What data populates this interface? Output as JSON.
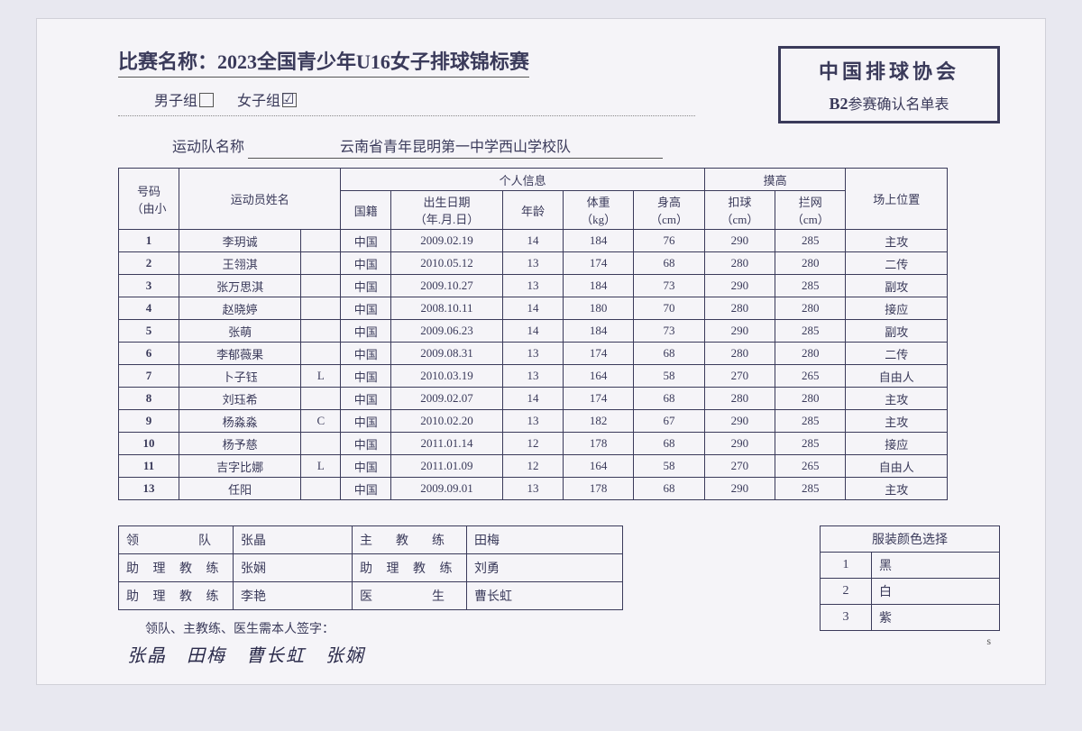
{
  "title_label": "比赛名称：",
  "title_value": "2023全国青少年U16女子排球锦标赛",
  "group_male": "男子组",
  "group_female": "女子组",
  "org_title": "中国排球协会",
  "org_code": "B2",
  "org_sub": "参赛确认名单表",
  "team_label": "运动队名称",
  "team_name": "云南省青年昆明第一中学西山学校队",
  "headers": {
    "num": "号码（由小到大）",
    "num_l1": "号码",
    "num_l2": "（由小",
    "num_l3": "到大）",
    "name": "运动员姓名",
    "personal": "个人信息",
    "nation": "国籍",
    "dob": "出生日期（年.月.日）",
    "dob_l1": "出生日期",
    "dob_l2": "（年.月.日）",
    "age": "年龄",
    "weight": "体重",
    "weight_u": "（kg）",
    "height": "身高",
    "height_u": "（cm）",
    "reach": "摸高",
    "spike": "扣球",
    "spike_u": "（cm）",
    "block": "拦网",
    "block_u": "（cm）",
    "pos": "场上位置"
  },
  "rows": [
    {
      "num": "1",
      "name": "李玥诚",
      "role": "",
      "nat": "中国",
      "dob": "2009.02.19",
      "age": "14",
      "w": "184",
      "h": "76",
      "sp": "290",
      "bl": "285",
      "pos": "主攻"
    },
    {
      "num": "2",
      "name": "王翎淇",
      "role": "",
      "nat": "中国",
      "dob": "2010.05.12",
      "age": "13",
      "w": "174",
      "h": "68",
      "sp": "280",
      "bl": "280",
      "pos": "二传"
    },
    {
      "num": "3",
      "name": "张万思淇",
      "role": "",
      "nat": "中国",
      "dob": "2009.10.27",
      "age": "13",
      "w": "184",
      "h": "73",
      "sp": "290",
      "bl": "285",
      "pos": "副攻"
    },
    {
      "num": "4",
      "name": "赵晓婷",
      "role": "",
      "nat": "中国",
      "dob": "2008.10.11",
      "age": "14",
      "w": "180",
      "h": "70",
      "sp": "280",
      "bl": "280",
      "pos": "接应"
    },
    {
      "num": "5",
      "name": "张萌",
      "role": "",
      "nat": "中国",
      "dob": "2009.06.23",
      "age": "14",
      "w": "184",
      "h": "73",
      "sp": "290",
      "bl": "285",
      "pos": "副攻"
    },
    {
      "num": "6",
      "name": "李郁薇果",
      "role": "",
      "nat": "中国",
      "dob": "2009.08.31",
      "age": "13",
      "w": "174",
      "h": "68",
      "sp": "280",
      "bl": "280",
      "pos": "二传"
    },
    {
      "num": "7",
      "name": "卜子钰",
      "role": "L",
      "nat": "中国",
      "dob": "2010.03.19",
      "age": "13",
      "w": "164",
      "h": "58",
      "sp": "270",
      "bl": "265",
      "pos": "自由人"
    },
    {
      "num": "8",
      "name": "刘珏希",
      "role": "",
      "nat": "中国",
      "dob": "2009.02.07",
      "age": "14",
      "w": "174",
      "h": "68",
      "sp": "280",
      "bl": "280",
      "pos": "主攻"
    },
    {
      "num": "9",
      "name": "杨淼淼",
      "role": "C",
      "nat": "中国",
      "dob": "2010.02.20",
      "age": "13",
      "w": "182",
      "h": "67",
      "sp": "290",
      "bl": "285",
      "pos": "主攻"
    },
    {
      "num": "10",
      "name": "杨予慈",
      "role": "",
      "nat": "中国",
      "dob": "2011.01.14",
      "age": "12",
      "w": "178",
      "h": "68",
      "sp": "290",
      "bl": "285",
      "pos": "接应"
    },
    {
      "num": "11",
      "name": "吉字比娜",
      "role": "L",
      "nat": "中国",
      "dob": "2011.01.09",
      "age": "12",
      "w": "164",
      "h": "58",
      "sp": "270",
      "bl": "265",
      "pos": "自由人"
    },
    {
      "num": "13",
      "name": "任阳",
      "role": "",
      "nat": "中国",
      "dob": "2009.09.01",
      "age": "13",
      "w": "178",
      "h": "68",
      "sp": "290",
      "bl": "285",
      "pos": "主攻"
    }
  ],
  "staff": {
    "leader_lbl": "领　　　队",
    "leader": "张晶",
    "asst1_lbl": "助 理 教 练",
    "asst1": "张娴",
    "asst2_lbl": "助 理 教 练",
    "asst2": "李艳",
    "head_lbl": "主　教　练",
    "head": "田梅",
    "asst3_lbl": "助 理 教 练",
    "asst3": "刘勇",
    "doc_lbl": "医　　　生",
    "doc": "曹长虹"
  },
  "uniform": {
    "title": "服装颜色选择",
    "rows": [
      {
        "n": "1",
        "c": "黑"
      },
      {
        "n": "2",
        "c": "白"
      },
      {
        "n": "3",
        "c": "紫"
      }
    ]
  },
  "sign_note": "领队、主教练、医生需本人签字：",
  "signatures": "张晶　田梅　曹长虹　张娴",
  "corner_s": "s"
}
